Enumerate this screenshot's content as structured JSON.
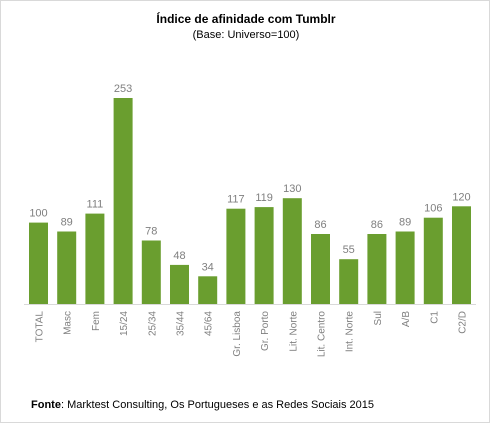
{
  "chart_data": {
    "type": "bar",
    "title": "Índice de afinidade com Tumblr",
    "subtitle": "(Base: Universo=100)",
    "xlabel": "",
    "ylabel": "",
    "categories": [
      "TOTAL",
      "Masc",
      "Fem",
      "15/24",
      "25/34",
      "35/44",
      "45/64",
      "Gr. Lisboa",
      "Gr. Porto",
      "Lit. Norte",
      "Lit. Centro",
      "Int. Norte",
      "Sul",
      "A/B",
      "C1",
      "C2/D"
    ],
    "values": [
      100,
      89,
      111,
      253,
      78,
      48,
      34,
      117,
      119,
      130,
      86,
      55,
      86,
      89,
      106,
      120
    ],
    "ylim": [
      0,
      253
    ],
    "grid": false,
    "legend": "none",
    "bar_color": "#6a9e2f"
  },
  "source": {
    "label": "Fonte",
    "text": ": Marktest Consulting, Os Portugueses e as Redes Sociais 2015"
  }
}
